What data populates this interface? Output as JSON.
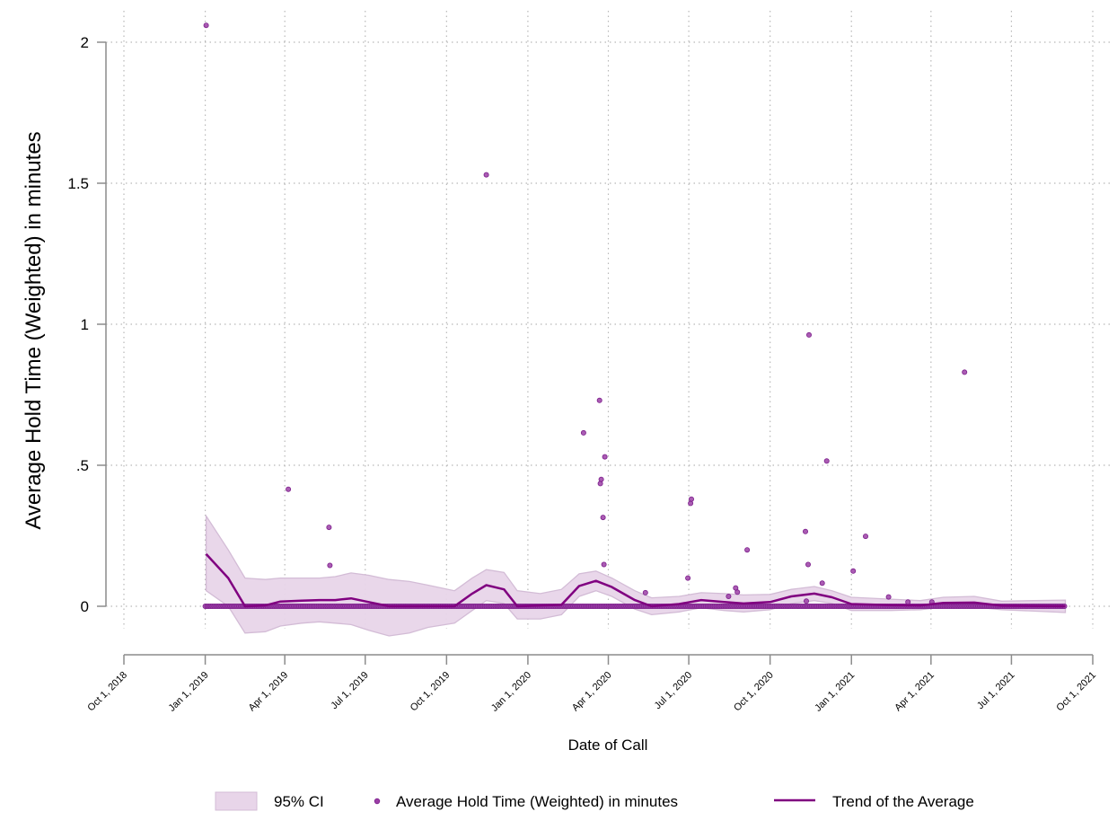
{
  "colors": {
    "point": "#9b3fa6",
    "trend": "#800080",
    "ci_fill": "#e8d5e9",
    "ci_stroke": "#d3bcd6",
    "grid": "#b8b8b8",
    "axis": "#8c8c8c"
  },
  "chart_data": {
    "type": "scatter",
    "xlabel": "Date of Call",
    "ylabel": "Average Hold Time (Weighted) in minutes",
    "xlim": [
      "2018-10-01",
      "2021-10-01"
    ],
    "ylim": [
      0,
      2
    ],
    "grid": true,
    "legend_position": "bottom",
    "x_ticks": [
      {
        "date": "2018-10-01",
        "label": "Oct 1, 2018"
      },
      {
        "date": "2019-01-01",
        "label": "Jan 1, 2019"
      },
      {
        "date": "2019-04-01",
        "label": "Apr 1, 2019"
      },
      {
        "date": "2019-07-01",
        "label": "Jul 1, 2019"
      },
      {
        "date": "2019-10-01",
        "label": "Oct 1, 2019"
      },
      {
        "date": "2020-01-01",
        "label": "Jan 1, 2020"
      },
      {
        "date": "2020-04-01",
        "label": "Apr 1, 2020"
      },
      {
        "date": "2020-07-01",
        "label": "Jul 1, 2020"
      },
      {
        "date": "2020-10-01",
        "label": "Oct 1, 2020"
      },
      {
        "date": "2021-01-01",
        "label": "Jan 1, 2021"
      },
      {
        "date": "2021-04-01",
        "label": "Apr 1, 2021"
      },
      {
        "date": "2021-07-01",
        "label": "Jul 1, 2021"
      },
      {
        "date": "2021-10-01",
        "label": "Oct 1, 2021"
      }
    ],
    "y_ticks": [
      {
        "value": 0,
        "label": "0"
      },
      {
        "value": 0.5,
        "label": ".5"
      },
      {
        "value": 1,
        "label": "1"
      },
      {
        "value": 1.5,
        "label": "1.5"
      },
      {
        "value": 2,
        "label": "2"
      }
    ],
    "zero_range": {
      "start": "2019-01-01",
      "end": "2021-08-31"
    },
    "series": [
      {
        "name": "Average Hold Time (Weighted) in minutes",
        "kind": "scatter",
        "points": [
          {
            "x": "2019-01-02",
            "y": 2.06
          },
          {
            "x": "2019-04-05",
            "y": 0.415
          },
          {
            "x": "2019-05-21",
            "y": 0.28
          },
          {
            "x": "2019-05-22",
            "y": 0.145
          },
          {
            "x": "2019-11-15",
            "y": 1.53
          },
          {
            "x": "2020-03-04",
            "y": 0.615
          },
          {
            "x": "2020-03-22",
            "y": 0.73
          },
          {
            "x": "2020-03-24",
            "y": 0.45
          },
          {
            "x": "2020-03-23",
            "y": 0.435
          },
          {
            "x": "2020-03-28",
            "y": 0.53
          },
          {
            "x": "2020-03-26",
            "y": 0.315
          },
          {
            "x": "2020-03-27",
            "y": 0.148
          },
          {
            "x": "2020-05-13",
            "y": 0.048
          },
          {
            "x": "2020-06-30",
            "y": 0.1
          },
          {
            "x": "2020-07-03",
            "y": 0.365
          },
          {
            "x": "2020-07-04",
            "y": 0.38
          },
          {
            "x": "2020-08-15",
            "y": 0.035
          },
          {
            "x": "2020-08-23",
            "y": 0.065
          },
          {
            "x": "2020-08-25",
            "y": 0.05
          },
          {
            "x": "2020-09-05",
            "y": 0.2
          },
          {
            "x": "2020-11-10",
            "y": 0.265
          },
          {
            "x": "2020-11-11",
            "y": 0.018
          },
          {
            "x": "2020-11-13",
            "y": 0.148
          },
          {
            "x": "2020-11-14",
            "y": 0.962
          },
          {
            "x": "2020-11-29",
            "y": 0.082
          },
          {
            "x": "2020-12-04",
            "y": 0.515
          },
          {
            "x": "2021-01-03",
            "y": 0.125
          },
          {
            "x": "2021-01-17",
            "y": 0.248
          },
          {
            "x": "2021-02-12",
            "y": 0.033
          },
          {
            "x": "2021-03-06",
            "y": 0.015
          },
          {
            "x": "2021-04-02",
            "y": 0.015
          },
          {
            "x": "2021-05-09",
            "y": 0.83
          }
        ]
      },
      {
        "name": "Trend of the Average",
        "kind": "line",
        "points": [
          {
            "x": "2019-01-02",
            "y": 0.185
          },
          {
            "x": "2019-01-27",
            "y": 0.1
          },
          {
            "x": "2019-02-15",
            "y": 0.0
          },
          {
            "x": "2019-03-10",
            "y": 0.003
          },
          {
            "x": "2019-03-27",
            "y": 0.017
          },
          {
            "x": "2019-04-20",
            "y": 0.02
          },
          {
            "x": "2019-05-10",
            "y": 0.022
          },
          {
            "x": "2019-05-28",
            "y": 0.022
          },
          {
            "x": "2019-06-15",
            "y": 0.028
          },
          {
            "x": "2019-07-05",
            "y": 0.015
          },
          {
            "x": "2019-07-28",
            "y": 0.0
          },
          {
            "x": "2019-10-10",
            "y": 0.0
          },
          {
            "x": "2019-10-30",
            "y": 0.045
          },
          {
            "x": "2019-11-15",
            "y": 0.075
          },
          {
            "x": "2019-12-05",
            "y": 0.06
          },
          {
            "x": "2019-12-20",
            "y": 0.0
          },
          {
            "x": "2020-02-08",
            "y": 0.005
          },
          {
            "x": "2020-02-28",
            "y": 0.072
          },
          {
            "x": "2020-03-18",
            "y": 0.09
          },
          {
            "x": "2020-04-05",
            "y": 0.068
          },
          {
            "x": "2020-05-01",
            "y": 0.022
          },
          {
            "x": "2020-05-20",
            "y": 0.0
          },
          {
            "x": "2020-06-20",
            "y": 0.008
          },
          {
            "x": "2020-07-15",
            "y": 0.022
          },
          {
            "x": "2020-08-10",
            "y": 0.015
          },
          {
            "x": "2020-09-01",
            "y": 0.01
          },
          {
            "x": "2020-10-01",
            "y": 0.015
          },
          {
            "x": "2020-10-25",
            "y": 0.035
          },
          {
            "x": "2020-11-20",
            "y": 0.045
          },
          {
            "x": "2020-12-10",
            "y": 0.032
          },
          {
            "x": "2021-01-01",
            "y": 0.008
          },
          {
            "x": "2021-02-15",
            "y": 0.004
          },
          {
            "x": "2021-03-20",
            "y": 0.003
          },
          {
            "x": "2021-04-15",
            "y": 0.012
          },
          {
            "x": "2021-05-20",
            "y": 0.013
          },
          {
            "x": "2021-06-20",
            "y": 0.002
          },
          {
            "x": "2021-08-31",
            "y": 0.0
          }
        ]
      }
    ],
    "ci_band": {
      "name": "95% CI",
      "points": [
        {
          "x": "2019-01-02",
          "lo": 0.055,
          "hi": 0.32
        },
        {
          "x": "2019-01-27",
          "lo": 0.0,
          "hi": 0.2
        },
        {
          "x": "2019-02-15",
          "lo": -0.095,
          "hi": 0.1
        },
        {
          "x": "2019-03-10",
          "lo": -0.09,
          "hi": 0.095
        },
        {
          "x": "2019-03-27",
          "lo": -0.07,
          "hi": 0.1
        },
        {
          "x": "2019-04-20",
          "lo": -0.06,
          "hi": 0.1
        },
        {
          "x": "2019-05-10",
          "lo": -0.055,
          "hi": 0.1
        },
        {
          "x": "2019-05-28",
          "lo": -0.06,
          "hi": 0.105
        },
        {
          "x": "2019-06-15",
          "lo": -0.065,
          "hi": 0.118
        },
        {
          "x": "2019-07-05",
          "lo": -0.085,
          "hi": 0.11
        },
        {
          "x": "2019-07-28",
          "lo": -0.105,
          "hi": 0.095
        },
        {
          "x": "2019-08-20",
          "lo": -0.095,
          "hi": 0.088
        },
        {
          "x": "2019-09-10",
          "lo": -0.075,
          "hi": 0.075
        },
        {
          "x": "2019-10-10",
          "lo": -0.06,
          "hi": 0.055
        },
        {
          "x": "2019-10-30",
          "lo": -0.015,
          "hi": 0.1
        },
        {
          "x": "2019-11-15",
          "lo": 0.02,
          "hi": 0.13
        },
        {
          "x": "2019-12-05",
          "lo": 0.01,
          "hi": 0.12
        },
        {
          "x": "2019-12-20",
          "lo": -0.045,
          "hi": 0.055
        },
        {
          "x": "2020-01-15",
          "lo": -0.045,
          "hi": 0.045
        },
        {
          "x": "2020-02-08",
          "lo": -0.03,
          "hi": 0.06
        },
        {
          "x": "2020-02-28",
          "lo": 0.035,
          "hi": 0.115
        },
        {
          "x": "2020-03-18",
          "lo": 0.055,
          "hi": 0.125
        },
        {
          "x": "2020-04-05",
          "lo": 0.035,
          "hi": 0.1
        },
        {
          "x": "2020-05-01",
          "lo": -0.01,
          "hi": 0.055
        },
        {
          "x": "2020-05-20",
          "lo": -0.03,
          "hi": 0.03
        },
        {
          "x": "2020-06-20",
          "lo": -0.02,
          "hi": 0.035
        },
        {
          "x": "2020-07-15",
          "lo": -0.005,
          "hi": 0.048
        },
        {
          "x": "2020-08-10",
          "lo": -0.015,
          "hi": 0.045
        },
        {
          "x": "2020-09-01",
          "lo": -0.02,
          "hi": 0.04
        },
        {
          "x": "2020-10-01",
          "lo": -0.012,
          "hi": 0.042
        },
        {
          "x": "2020-10-25",
          "lo": 0.01,
          "hi": 0.06
        },
        {
          "x": "2020-11-20",
          "lo": 0.02,
          "hi": 0.07
        },
        {
          "x": "2020-12-10",
          "lo": 0.01,
          "hi": 0.055
        },
        {
          "x": "2021-01-01",
          "lo": -0.015,
          "hi": 0.032
        },
        {
          "x": "2021-02-15",
          "lo": -0.015,
          "hi": 0.025
        },
        {
          "x": "2021-03-20",
          "lo": -0.012,
          "hi": 0.02
        },
        {
          "x": "2021-04-15",
          "lo": -0.003,
          "hi": 0.032
        },
        {
          "x": "2021-05-20",
          "lo": -0.003,
          "hi": 0.035
        },
        {
          "x": "2021-06-20",
          "lo": -0.012,
          "hi": 0.018
        },
        {
          "x": "2021-08-31",
          "lo": -0.022,
          "hi": 0.022
        }
      ]
    }
  },
  "legend": {
    "ci_label": "95% CI",
    "points_label": "Average Hold Time (Weighted) in minutes",
    "trend_label": "Trend of the Average"
  }
}
